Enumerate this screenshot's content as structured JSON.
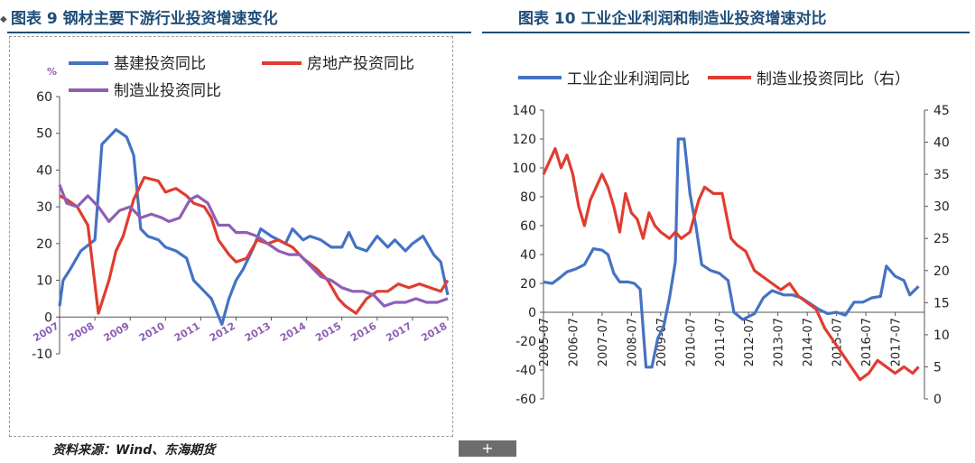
{
  "titles": {
    "left": "图表 9 钢材主要下游行业投资增速变化",
    "right": "图表 10 工业企业利润和制造业投资增速对比"
  },
  "source": "资料来源：Wind、东海期货",
  "footer_button": "+",
  "corner_mark": "◆",
  "colors": {
    "blue": "#4472c4",
    "red": "#e03c31",
    "purple": "#8e5fb5",
    "title": "#1f4e79",
    "axis": "#555555"
  },
  "chart_data": [
    {
      "type": "line",
      "title": "图表 9 钢材主要下游行业投资增速变化",
      "ylabel": "%",
      "ylim": [
        -10,
        60
      ],
      "yticks": [
        -10,
        0,
        10,
        20,
        30,
        40,
        50,
        60
      ],
      "xlim": [
        2007.0,
        2018.0
      ],
      "xtick_labels": [
        "2007",
        "2008",
        "2009",
        "2010",
        "2011",
        "2012",
        "2013",
        "2014",
        "2015",
        "2016",
        "2017",
        "2018"
      ],
      "legend": [
        "基建投资同比",
        "房地产投资同比",
        "制造业投资同比"
      ],
      "series": [
        {
          "name": "基建投资同比",
          "color": "blue",
          "x": [
            2007.0,
            2007.1,
            2007.3,
            2007.6,
            2008.0,
            2008.2,
            2008.4,
            2008.6,
            2008.9,
            2009.1,
            2009.3,
            2009.5,
            2009.8,
            2010.0,
            2010.3,
            2010.6,
            2010.8,
            2011.1,
            2011.3,
            2011.6,
            2011.8,
            2012.0,
            2012.2,
            2012.5,
            2012.7,
            2013.0,
            2013.4,
            2013.6,
            2013.9,
            2014.1,
            2014.4,
            2014.7,
            2015.0,
            2015.2,
            2015.4,
            2015.7,
            2016.0,
            2016.3,
            2016.5,
            2016.8,
            2017.0,
            2017.3,
            2017.6,
            2017.8,
            2018.0
          ],
          "values": [
            3,
            10,
            13,
            18,
            21,
            47,
            49,
            51,
            49,
            44,
            24,
            22,
            21,
            19,
            18,
            16,
            10,
            7,
            5,
            -2,
            5,
            10,
            13,
            19,
            24,
            22,
            20,
            24,
            21,
            22,
            21,
            19,
            19,
            23,
            19,
            18,
            22,
            19,
            21,
            18,
            20,
            22,
            17,
            15,
            6
          ]
        },
        {
          "name": "房地产投资同比",
          "color": "red",
          "x": [
            2007.0,
            2007.2,
            2007.5,
            2007.8,
            2008.1,
            2008.4,
            2008.6,
            2008.8,
            2009.1,
            2009.4,
            2009.8,
            2010.0,
            2010.3,
            2010.6,
            2010.8,
            2011.1,
            2011.3,
            2011.5,
            2011.8,
            2012.0,
            2012.3,
            2012.6,
            2012.9,
            2013.2,
            2013.6,
            2013.9,
            2014.3,
            2014.6,
            2014.9,
            2015.1,
            2015.4,
            2015.7,
            2016.0,
            2016.3,
            2016.6,
            2016.9,
            2017.2,
            2017.5,
            2017.8,
            2018.0
          ],
          "values": [
            33,
            32,
            30,
            25,
            1,
            10,
            18,
            22,
            32,
            38,
            37,
            34,
            35,
            33,
            31,
            30,
            27,
            21,
            17,
            15,
            16,
            21,
            20,
            21,
            19,
            16,
            13,
            10,
            5,
            3,
            1,
            5,
            7,
            7,
            9,
            8,
            9,
            8,
            7,
            10
          ]
        },
        {
          "name": "制造业投资同比",
          "color": "purple",
          "x": [
            2007.0,
            2007.2,
            2007.5,
            2007.8,
            2008.1,
            2008.4,
            2008.7,
            2009.0,
            2009.3,
            2009.6,
            2009.9,
            2010.1,
            2010.4,
            2010.7,
            2010.9,
            2011.2,
            2011.5,
            2011.8,
            2012.0,
            2012.3,
            2012.6,
            2012.9,
            2013.2,
            2013.5,
            2013.8,
            2014.1,
            2014.4,
            2014.7,
            2015.0,
            2015.3,
            2015.6,
            2015.9,
            2016.2,
            2016.5,
            2016.8,
            2017.1,
            2017.4,
            2017.7,
            2018.0
          ],
          "values": [
            36,
            31,
            30,
            33,
            30,
            26,
            29,
            30,
            27,
            28,
            27,
            26,
            27,
            32,
            33,
            31,
            25,
            25,
            23,
            23,
            22,
            20,
            18,
            17,
            17,
            14,
            11,
            10,
            8,
            7,
            7,
            6,
            3,
            4,
            4,
            5,
            4,
            4,
            5
          ]
        }
      ]
    },
    {
      "type": "line",
      "title": "图表 10 工业企业利润和制造业投资增速对比",
      "ylim_left": [
        -60,
        140
      ],
      "yticks_left": [
        -60,
        -40,
        -20,
        0,
        20,
        40,
        60,
        80,
        100,
        120,
        140
      ],
      "ylim_right": [
        0,
        45
      ],
      "yticks_right": [
        0,
        5,
        10,
        15,
        20,
        25,
        30,
        35,
        40,
        45
      ],
      "xlim": [
        2005.5,
        2018.5
      ],
      "xtick_labels": [
        "2005-07",
        "2006-07",
        "2007-07",
        "2008-07",
        "2009-07",
        "2010-07",
        "2011-07",
        "2012-07",
        "2013-07",
        "2014-07",
        "2015-07",
        "2016-07",
        "2017-07"
      ],
      "legend": [
        "工业企业利润同比",
        "制造业投资同比（右）"
      ],
      "series": [
        {
          "name": "工业企业利润同比",
          "color": "blue",
          "axis": "left",
          "x": [
            2005.5,
            2005.8,
            2006.0,
            2006.3,
            2006.6,
            2006.9,
            2007.2,
            2007.5,
            2007.7,
            2007.9,
            2008.1,
            2008.4,
            2008.6,
            2008.8,
            2009.0,
            2009.2,
            2009.4,
            2009.6,
            2009.8,
            2010.0,
            2010.1,
            2010.3,
            2010.5,
            2010.7,
            2010.9,
            2011.2,
            2011.5,
            2011.8,
            2012.0,
            2012.3,
            2012.7,
            2013.0,
            2013.3,
            2013.7,
            2014.0,
            2014.3,
            2014.6,
            2014.9,
            2015.2,
            2015.5,
            2015.8,
            2016.1,
            2016.4,
            2016.7,
            2017.0,
            2017.2,
            2017.5,
            2017.8,
            2018.0,
            2018.3
          ],
          "values": [
            21,
            20,
            23,
            28,
            30,
            33,
            44,
            43,
            40,
            27,
            21,
            21,
            20,
            16,
            -38,
            -38,
            -18,
            -10,
            10,
            35,
            120,
            120,
            82,
            60,
            33,
            29,
            27,
            22,
            0,
            -5,
            -1,
            10,
            15,
            12,
            12,
            10,
            6,
            2,
            -1,
            0,
            -2,
            7,
            7,
            10,
            11,
            32,
            25,
            22,
            12,
            18
          ]
        },
        {
          "name": "制造业投资同比（右）",
          "color": "red",
          "axis": "right",
          "x": [
            2005.5,
            2005.7,
            2005.9,
            2006.1,
            2006.3,
            2006.5,
            2006.7,
            2006.9,
            2007.1,
            2007.3,
            2007.5,
            2007.7,
            2007.9,
            2008.1,
            2008.3,
            2008.5,
            2008.7,
            2008.9,
            2009.1,
            2009.3,
            2009.5,
            2009.8,
            2010.0,
            2010.2,
            2010.5,
            2010.8,
            2011.0,
            2011.3,
            2011.6,
            2011.9,
            2012.1,
            2012.4,
            2012.7,
            2013.0,
            2013.3,
            2013.6,
            2013.9,
            2014.2,
            2014.5,
            2014.8,
            2015.1,
            2015.4,
            2015.7,
            2016.0,
            2016.3,
            2016.6,
            2016.9,
            2017.2,
            2017.5,
            2017.8,
            2018.1,
            2018.3
          ],
          "values": [
            35,
            37,
            39,
            36,
            38,
            35,
            30,
            27,
            31,
            33,
            35,
            33,
            30,
            26,
            32,
            29,
            28,
            25,
            29,
            27,
            26,
            25,
            26,
            25,
            26,
            31,
            33,
            32,
            32,
            25,
            24,
            23,
            20,
            19,
            18,
            17,
            18,
            16,
            15,
            14,
            11,
            9,
            7,
            5,
            3,
            4,
            6,
            5,
            4,
            5,
            4,
            5
          ]
        }
      ]
    }
  ]
}
